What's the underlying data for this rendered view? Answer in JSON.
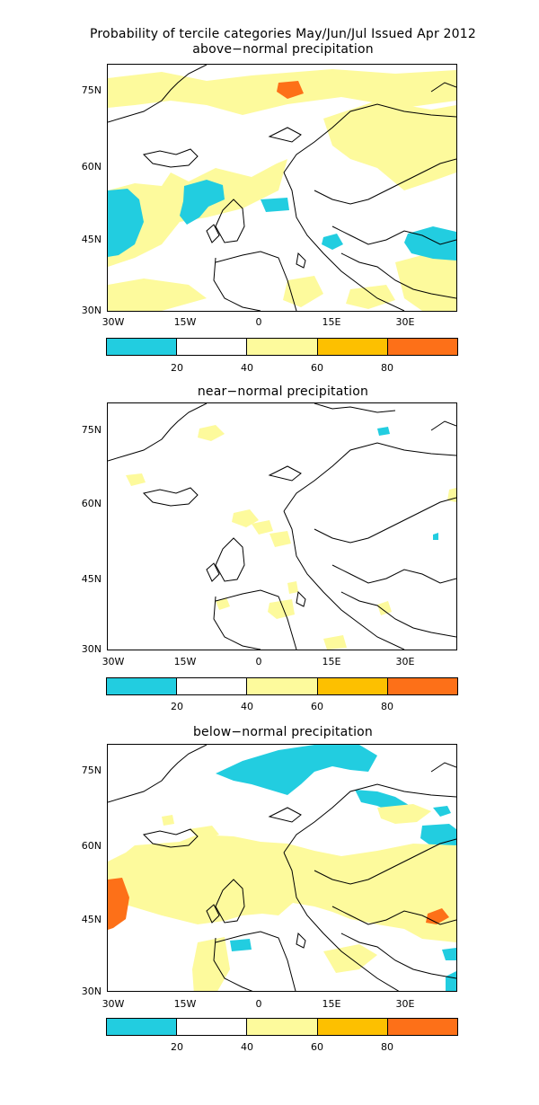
{
  "title": "Probability of tercile categories May/Jun/Jul Issued Apr 2012",
  "panels": [
    {
      "title": "above−normal precipitation"
    },
    {
      "title": "near−normal precipitation"
    },
    {
      "title": "below−normal precipitation"
    }
  ],
  "axes": {
    "lat_ticks": [
      "75N",
      "60N",
      "45N",
      "30N"
    ],
    "lon_ticks": [
      "30W",
      "15W",
      "0",
      "15E",
      "30E"
    ]
  },
  "legend": {
    "labels": [
      "20",
      "40",
      "60",
      "80"
    ],
    "colors": [
      "#22cde0",
      "#ffffff",
      "#fdfa9c",
      "#fdc000",
      "#fd7018"
    ]
  },
  "colors": {
    "cyan": "#22cde0",
    "yellow": "#fdfa9c",
    "orange": "#fd7018"
  }
}
